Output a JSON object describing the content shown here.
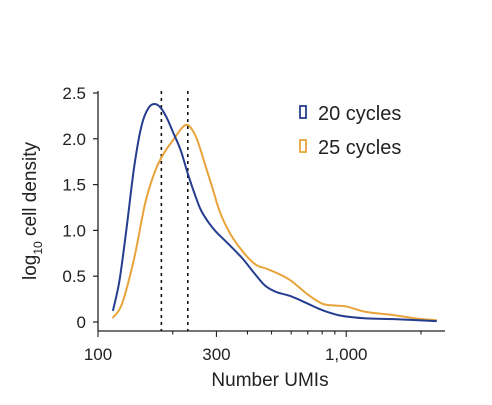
{
  "chart_data": {
    "type": "line",
    "title": "",
    "xlabel": "Number UMIs",
    "ylabel": {
      "prefix": "log",
      "subscript": "10",
      "suffix": " cell density"
    },
    "x_scale": "log",
    "xlim": [
      100,
      2500
    ],
    "ylim": [
      0,
      2.5
    ],
    "x_ticks": [
      {
        "value": 100,
        "label": "100"
      },
      {
        "value": 300,
        "label": "300"
      },
      {
        "value": 1000,
        "label": "1,000"
      }
    ],
    "y_ticks": [
      {
        "value": 0,
        "label": "0"
      },
      {
        "value": 0.5,
        "label": "0.5"
      },
      {
        "value": 1.0,
        "label": "1.0"
      },
      {
        "value": 1.5,
        "label": "1.5"
      },
      {
        "value": 2.0,
        "label": "2.0"
      },
      {
        "value": 2.5,
        "label": "2.5"
      }
    ],
    "grid": false,
    "legend_position": "top-right",
    "series": [
      {
        "name": "20 cycles",
        "color": "#253d8f",
        "points": [
          [
            115,
            0.13
          ],
          [
            122,
            0.45
          ],
          [
            130,
            1.0
          ],
          [
            140,
            1.7
          ],
          [
            150,
            2.15
          ],
          [
            160,
            2.34
          ],
          [
            170,
            2.38
          ],
          [
            180,
            2.33
          ],
          [
            190,
            2.22
          ],
          [
            200,
            2.08
          ],
          [
            215,
            1.88
          ],
          [
            230,
            1.62
          ],
          [
            245,
            1.4
          ],
          [
            260,
            1.22
          ],
          [
            280,
            1.08
          ],
          [
            300,
            0.98
          ],
          [
            330,
            0.87
          ],
          [
            380,
            0.7
          ],
          [
            430,
            0.52
          ],
          [
            470,
            0.4
          ],
          [
            520,
            0.33
          ],
          [
            600,
            0.28
          ],
          [
            700,
            0.2
          ],
          [
            800,
            0.13
          ],
          [
            950,
            0.07
          ],
          [
            1200,
            0.04
          ],
          [
            1600,
            0.03
          ],
          [
            2300,
            0.01
          ]
        ]
      },
      {
        "name": "25 cycles",
        "color": "#e8a33a",
        "points": [
          [
            115,
            0.05
          ],
          [
            125,
            0.2
          ],
          [
            140,
            0.7
          ],
          [
            155,
            1.3
          ],
          [
            170,
            1.65
          ],
          [
            185,
            1.85
          ],
          [
            200,
            1.98
          ],
          [
            215,
            2.1
          ],
          [
            225,
            2.15
          ],
          [
            235,
            2.13
          ],
          [
            250,
            2.0
          ],
          [
            270,
            1.72
          ],
          [
            290,
            1.45
          ],
          [
            310,
            1.2
          ],
          [
            340,
            0.97
          ],
          [
            380,
            0.78
          ],
          [
            430,
            0.63
          ],
          [
            480,
            0.58
          ],
          [
            540,
            0.52
          ],
          [
            600,
            0.45
          ],
          [
            700,
            0.3
          ],
          [
            800,
            0.2
          ],
          [
            900,
            0.18
          ],
          [
            1000,
            0.17
          ],
          [
            1200,
            0.11
          ],
          [
            1500,
            0.08
          ],
          [
            1900,
            0.04
          ],
          [
            2300,
            0.02
          ]
        ]
      }
    ],
    "reference_lines": [
      {
        "x": 180,
        "style": "dotted",
        "color": "#111111"
      },
      {
        "x": 230,
        "style": "dotted",
        "color": "#111111"
      }
    ]
  }
}
